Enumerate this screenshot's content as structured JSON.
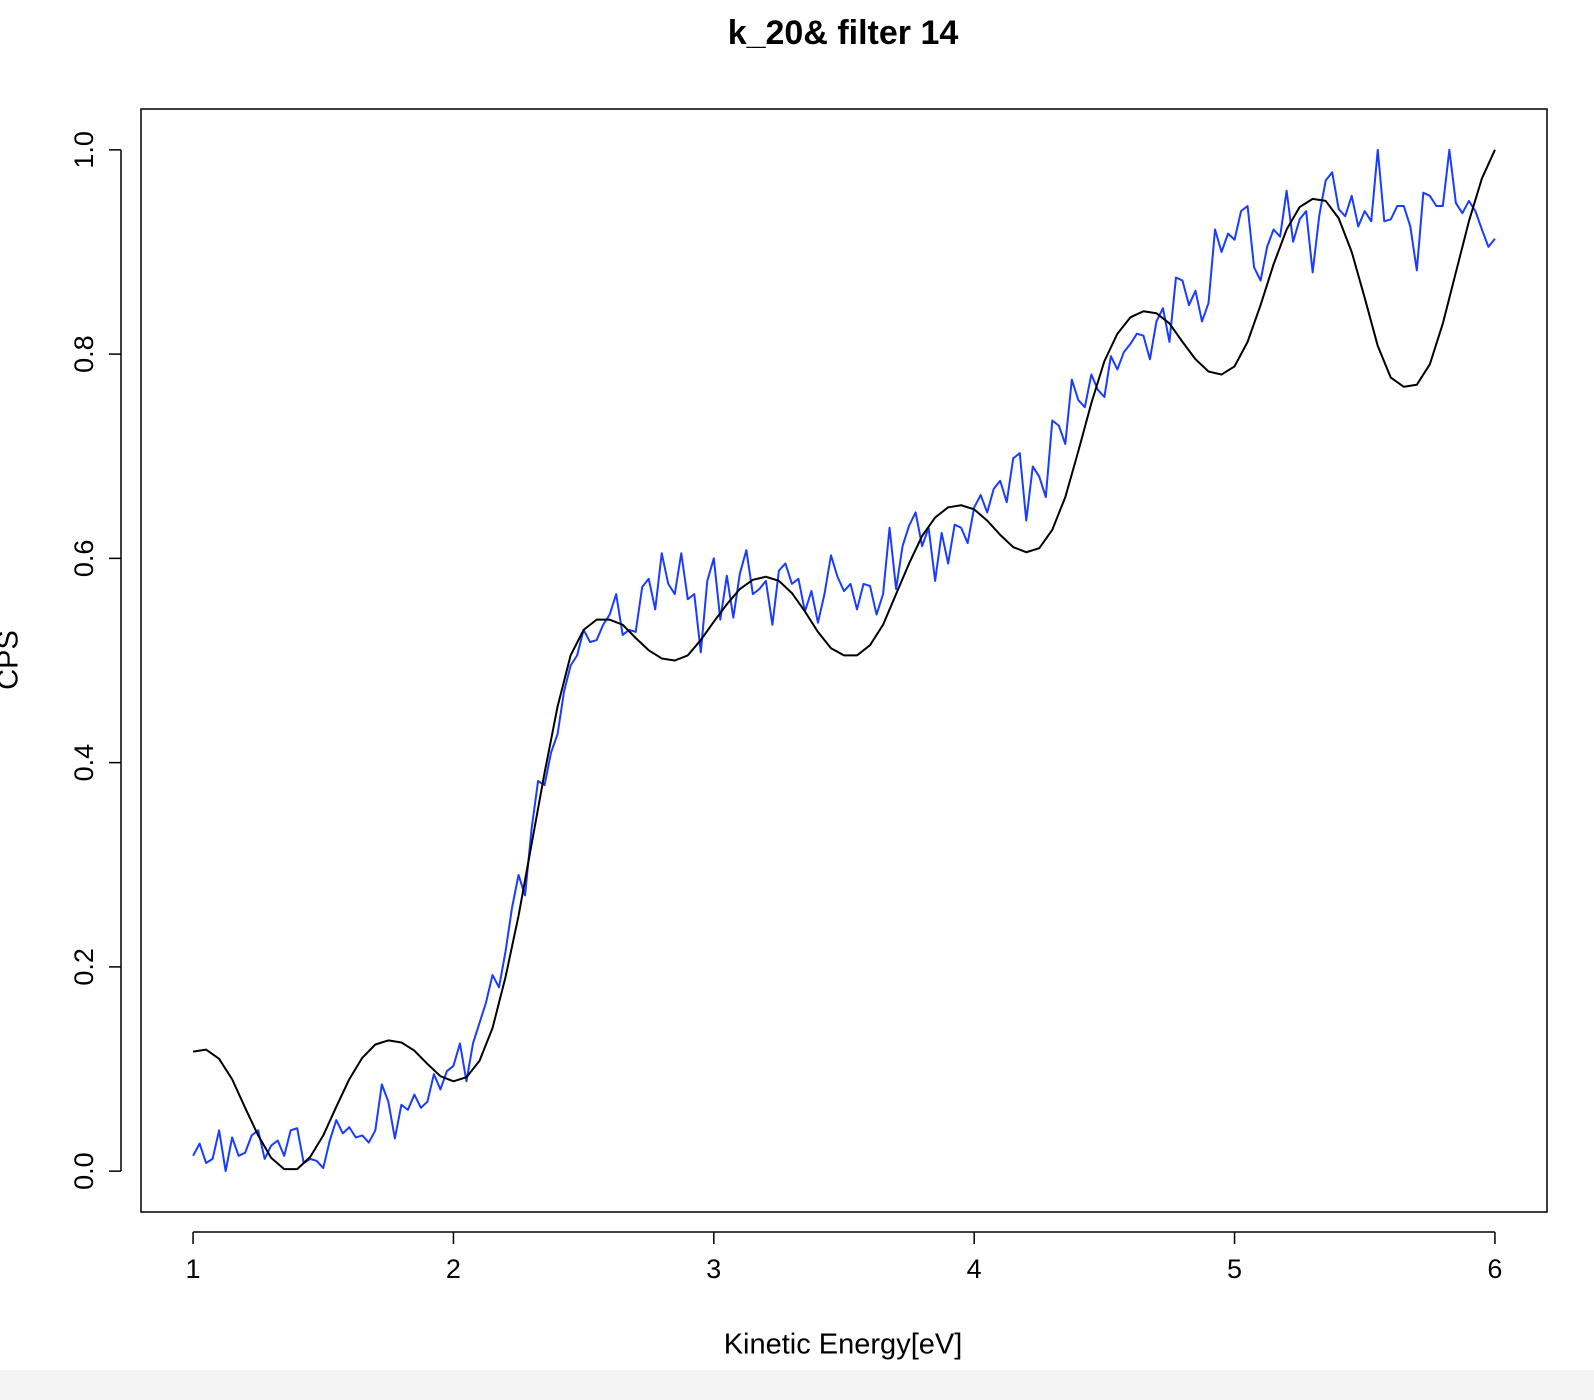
{
  "chart_data": {
    "type": "line",
    "title": "k_20& filter 14",
    "x_label": "Kinetic Energy[eV]",
    "y_label": "CPS",
    "xlim": [
      0.8,
      6.2
    ],
    "ylim": [
      -0.04,
      1.04
    ],
    "xticks": [
      1,
      2,
      3,
      4,
      5,
      6
    ],
    "yticks": [
      {
        "value": 0,
        "label": "0.0"
      },
      0.2,
      0.4,
      0.6,
      0.8,
      {
        "value": 1,
        "label": "1.0"
      }
    ],
    "series": [
      {
        "color": "#1a3cff",
        "x": [
          1,
          1.025,
          1.05,
          1.075,
          1.1,
          1.125,
          1.15,
          1.175,
          1.2,
          1.225,
          1.25,
          1.275,
          1.3,
          1.325,
          1.35,
          1.375,
          1.4,
          1.425,
          1.45,
          1.475,
          1.5,
          1.525,
          1.55,
          1.575,
          1.6,
          1.625,
          1.65,
          1.675,
          1.7,
          1.725,
          1.75,
          1.775,
          1.8,
          1.825,
          1.85,
          1.875,
          1.9,
          1.925,
          1.95,
          1.975,
          2,
          2.025,
          2.05,
          2.075,
          2.1,
          2.125,
          2.15,
          2.175,
          2.2,
          2.225,
          2.25,
          2.275,
          2.3,
          2.325,
          2.35,
          2.375,
          2.4,
          2.425,
          2.45,
          2.475,
          2.5,
          2.525,
          2.55,
          2.575,
          2.6,
          2.625,
          2.65,
          2.675,
          2.7,
          2.725,
          2.75,
          2.775,
          2.8,
          2.825,
          2.85,
          2.875,
          2.9,
          2.925,
          2.95,
          2.975,
          3,
          3.025,
          3.05,
          3.075,
          3.1,
          3.125,
          3.15,
          3.175,
          3.2,
          3.225,
          3.25,
          3.275,
          3.3,
          3.325,
          3.35,
          3.375,
          3.4,
          3.425,
          3.45,
          3.475,
          3.5,
          3.525,
          3.55,
          3.575,
          3.6,
          3.625,
          3.65,
          3.675,
          3.7,
          3.725,
          3.75,
          3.775,
          3.8,
          3.825,
          3.85,
          3.875,
          3.9,
          3.925,
          3.95,
          3.975,
          4,
          4.025,
          4.05,
          4.075,
          4.1,
          4.125,
          4.15,
          4.175,
          4.2,
          4.225,
          4.25,
          4.275,
          4.3,
          4.325,
          4.35,
          4.375,
          4.4,
          4.425,
          4.45,
          4.475,
          4.5,
          4.525,
          4.55,
          4.575,
          4.6,
          4.625,
          4.65,
          4.675,
          4.7,
          4.725,
          4.75,
          4.775,
          4.8,
          4.825,
          4.85,
          4.875,
          4.9,
          4.925,
          4.95,
          4.975,
          5,
          5.025,
          5.05,
          5.075,
          5.1,
          5.125,
          5.15,
          5.175,
          5.2,
          5.225,
          5.25,
          5.275,
          5.3,
          5.325,
          5.35,
          5.375,
          5.4,
          5.425,
          5.45,
          5.475,
          5.5,
          5.525,
          5.55,
          5.575,
          5.6,
          5.625,
          5.65,
          5.675,
          5.7,
          5.725,
          5.75,
          5.775,
          5.8,
          5.825,
          5.85,
          5.875,
          5.9,
          5.925,
          5.95,
          5.975,
          6
        ],
        "values": [
          0.015,
          0.027,
          0.008,
          0.012,
          0.04,
          0.0,
          0.033,
          0.015,
          0.018,
          0.035,
          0.04,
          0.012,
          0.025,
          0.03,
          0.015,
          0.04,
          0.042,
          0.008,
          0.012,
          0.01,
          0.003,
          0.03,
          0.05,
          0.037,
          0.043,
          0.033,
          0.035,
          0.028,
          0.04,
          0.085,
          0.068,
          0.032,
          0.065,
          0.06,
          0.075,
          0.062,
          0.068,
          0.095,
          0.08,
          0.098,
          0.103,
          0.125,
          0.088,
          0.125,
          0.145,
          0.165,
          0.192,
          0.18,
          0.215,
          0.258,
          0.29,
          0.27,
          0.335,
          0.382,
          0.378,
          0.41,
          0.428,
          0.47,
          0.495,
          0.505,
          0.53,
          0.518,
          0.52,
          0.535,
          0.545,
          0.565,
          0.525,
          0.53,
          0.528,
          0.572,
          0.58,
          0.55,
          0.605,
          0.575,
          0.565,
          0.605,
          0.56,
          0.565,
          0.508,
          0.578,
          0.6,
          0.54,
          0.583,
          0.542,
          0.585,
          0.608,
          0.565,
          0.57,
          0.578,
          0.535,
          0.588,
          0.595,
          0.575,
          0.58,
          0.548,
          0.568,
          0.537,
          0.565,
          0.603,
          0.582,
          0.568,
          0.575,
          0.55,
          0.575,
          0.573,
          0.545,
          0.565,
          0.63,
          0.57,
          0.612,
          0.632,
          0.645,
          0.612,
          0.63,
          0.578,
          0.625,
          0.595,
          0.633,
          0.63,
          0.615,
          0.65,
          0.662,
          0.645,
          0.668,
          0.676,
          0.655,
          0.698,
          0.703,
          0.637,
          0.69,
          0.68,
          0.66,
          0.735,
          0.73,
          0.712,
          0.775,
          0.755,
          0.748,
          0.78,
          0.765,
          0.758,
          0.798,
          0.785,
          0.802,
          0.81,
          0.82,
          0.818,
          0.795,
          0.832,
          0.845,
          0.812,
          0.875,
          0.872,
          0.848,
          0.862,
          0.832,
          0.85,
          0.922,
          0.9,
          0.918,
          0.912,
          0.94,
          0.945,
          0.885,
          0.872,
          0.905,
          0.922,
          0.915,
          0.96,
          0.91,
          0.932,
          0.94,
          0.88,
          0.935,
          0.97,
          0.978,
          0.942,
          0.935,
          0.955,
          0.925,
          0.94,
          0.93,
          1.0,
          0.93,
          0.932,
          0.945,
          0.945,
          0.925,
          0.882,
          0.958,
          0.955,
          0.945,
          0.945,
          1.0,
          0.948,
          0.938,
          0.95,
          0.94,
          0.922,
          0.905,
          0.913
        ]
      },
      {
        "color": "#000000",
        "x": [
          1,
          1.05,
          1.1,
          1.15,
          1.2,
          1.25,
          1.3,
          1.35,
          1.4,
          1.45,
          1.5,
          1.55,
          1.6,
          1.65,
          1.7,
          1.75,
          1.8,
          1.85,
          1.9,
          1.95,
          2,
          2.05,
          2.1,
          2.15,
          2.2,
          2.25,
          2.3,
          2.35,
          2.4,
          2.45,
          2.5,
          2.55,
          2.6,
          2.65,
          2.7,
          2.75,
          2.8,
          2.85,
          2.9,
          2.95,
          3,
          3.05,
          3.1,
          3.15,
          3.2,
          3.25,
          3.3,
          3.35,
          3.4,
          3.45,
          3.5,
          3.55,
          3.6,
          3.65,
          3.7,
          3.75,
          3.8,
          3.85,
          3.9,
          3.95,
          4,
          4.05,
          4.1,
          4.15,
          4.2,
          4.25,
          4.3,
          4.35,
          4.4,
          4.45,
          4.5,
          4.55,
          4.6,
          4.65,
          4.7,
          4.75,
          4.8,
          4.85,
          4.9,
          4.95,
          5,
          5.05,
          5.1,
          5.15,
          5.2,
          5.25,
          5.3,
          5.35,
          5.4,
          5.45,
          5.5,
          5.55,
          5.6,
          5.65,
          5.7,
          5.75,
          5.8,
          5.85,
          5.9,
          5.95,
          6
        ],
        "values": [
          0.117,
          0.119,
          0.11,
          0.09,
          0.062,
          0.035,
          0.013,
          0.002,
          0.002,
          0.014,
          0.035,
          0.063,
          0.09,
          0.111,
          0.124,
          0.128,
          0.126,
          0.118,
          0.105,
          0.093,
          0.088,
          0.092,
          0.108,
          0.14,
          0.19,
          0.25,
          0.32,
          0.39,
          0.455,
          0.505,
          0.53,
          0.54,
          0.54,
          0.535,
          0.522,
          0.51,
          0.502,
          0.5,
          0.505,
          0.52,
          0.538,
          0.555,
          0.57,
          0.579,
          0.582,
          0.578,
          0.566,
          0.548,
          0.528,
          0.512,
          0.505,
          0.505,
          0.515,
          0.535,
          0.565,
          0.595,
          0.622,
          0.64,
          0.65,
          0.652,
          0.648,
          0.637,
          0.623,
          0.611,
          0.606,
          0.61,
          0.628,
          0.66,
          0.705,
          0.752,
          0.793,
          0.82,
          0.836,
          0.842,
          0.84,
          0.83,
          0.812,
          0.795,
          0.783,
          0.78,
          0.788,
          0.812,
          0.848,
          0.888,
          0.922,
          0.944,
          0.952,
          0.95,
          0.933,
          0.9,
          0.855,
          0.808,
          0.777,
          0.768,
          0.77,
          0.79,
          0.83,
          0.88,
          0.93,
          0.972,
          1.0
        ]
      }
    ]
  }
}
